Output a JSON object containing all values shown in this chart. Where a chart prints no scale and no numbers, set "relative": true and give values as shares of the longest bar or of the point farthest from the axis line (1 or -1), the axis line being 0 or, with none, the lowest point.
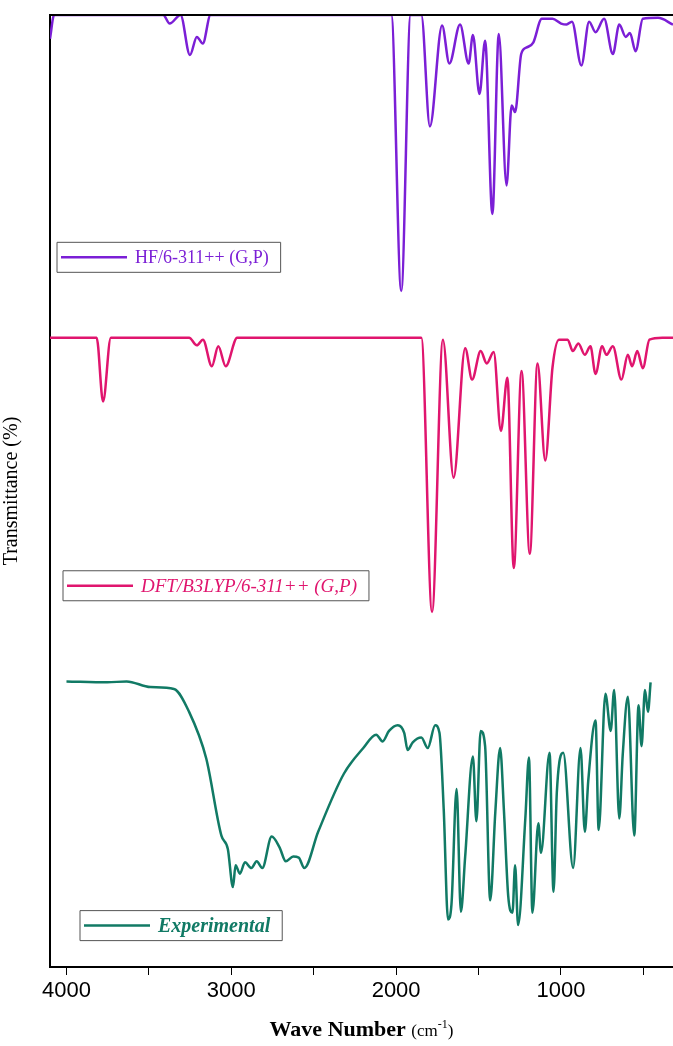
{
  "chart_data": {
    "type": "line",
    "xlabel": "Wave Number (cm$^{-1}$)",
    "ylabel": "Transmittance (%)",
    "relative": true,
    "xlim": [
      4100,
      320
    ],
    "xticks": [
      4000,
      {
        "value": 3500,
        "label": null
      },
      3000,
      {
        "value": 2500,
        "label": null
      },
      2000,
      {
        "value": 1500,
        "label": null
      },
      1000,
      {
        "value": 500,
        "label": null
      }
    ],
    "legend": "left",
    "grid": false,
    "marker": "none",
    "line_style": "solid",
    "series": [
      {
        "name": "HF/6-311++ (G,P)",
        "color": "#7b1fd6",
        "x": [
          4100,
          4075,
          3413,
          3374,
          3308,
          3251,
          3209,
          3173,
          3126,
          2029,
          1969,
          1912,
          1847,
          1795,
          1721,
          1677,
          1612,
          1560,
          1534,
          1494,
          1460,
          1416,
          1377,
          1330,
          1299,
          1278,
          1241,
          1207,
          1168,
          1116,
          1051,
          999,
          966,
          933,
          876,
          829,
          790,
          738,
          685,
          646,
          607,
          581,
          547,
          503,
          411,
          320
        ],
        "values": [
          0.975,
          1.0,
          1.0,
          0.991,
          1.0,
          0.958,
          0.977,
          0.97,
          1.0,
          1.0,
          0.71,
          1.0,
          1.0,
          0.883,
          0.989,
          0.949,
          0.99,
          0.949,
          0.979,
          0.917,
          0.973,
          0.791,
          0.98,
          0.821,
          0.905,
          0.898,
          0.959,
          0.966,
          0.971,
          0.996,
          0.996,
          0.991,
          0.99,
          0.993,
          0.947,
          0.993,
          0.982,
          0.996,
          0.959,
          0.99,
          0.977,
          0.981,
          0.962,
          0.996,
          0.997,
          0.99
        ]
      },
      {
        "name": "DFT/B3LYP/6-311++ (G,P)",
        "color": "#e0156e",
        "x": [
          4100,
          3817,
          3778,
          3731,
          3256,
          3209,
          3172,
          3118,
          3079,
          3034,
          2964,
          1847,
          1782,
          1716,
          1651,
          1581,
          1539,
          1487,
          1450,
          1408,
          1364,
          1325,
          1286,
          1239,
          1189,
          1142,
          1095,
          1051,
          1012,
          959,
          928,
          894,
          855,
          821,
          790,
          750,
          724,
          685,
          633,
          594,
          568,
          537,
          503,
          463,
          385,
          320
        ],
        "values": [
          0.661,
          0.661,
          0.594,
          0.661,
          0.661,
          0.653,
          0.659,
          0.631,
          0.652,
          0.631,
          0.661,
          0.661,
          0.373,
          0.659,
          0.514,
          0.65,
          0.617,
          0.647,
          0.634,
          0.646,
          0.563,
          0.619,
          0.419,
          0.626,
          0.434,
          0.634,
          0.532,
          0.63,
          0.659,
          0.659,
          0.647,
          0.655,
          0.643,
          0.652,
          0.623,
          0.652,
          0.643,
          0.652,
          0.617,
          0.643,
          0.631,
          0.647,
          0.629,
          0.659,
          0.661,
          0.661
        ]
      },
      {
        "name": "Experimental",
        "color": "#117a65",
        "x": [
          4000,
          3752,
          3635,
          3491,
          3348,
          3256,
          3152,
          3060,
          3021,
          2990,
          2974,
          2948,
          2917,
          2878,
          2846,
          2812,
          2755,
          2708,
          2669,
          2624,
          2591,
          2557,
          2473,
          2317,
          2199,
          2121,
          2082,
          2043,
          1990,
          1951,
          1930,
          1899,
          1847,
          1808,
          1763,
          1737,
          1711,
          1685,
          1664,
          1633,
          1607,
          1581,
          1534,
          1513,
          1487,
          1460,
          1429,
          1398,
          1369,
          1346,
          1320,
          1294,
          1278,
          1260,
          1216,
          1194,
          1173,
          1137,
          1121,
          1069,
          1045,
          1025,
          986,
          926,
          881,
          855,
          834,
          790,
          771,
          730,
          698,
          677,
          646,
          625,
          594,
          555,
          529,
          511,
          490,
          472,
          456
        ],
        "values": [
          0.3,
          0.299,
          0.3,
          0.294,
          0.292,
          0.268,
          0.219,
          0.138,
          0.124,
          0.084,
          0.107,
          0.098,
          0.11,
          0.104,
          0.111,
          0.104,
          0.137,
          0.126,
          0.111,
          0.116,
          0.115,
          0.104,
          0.142,
          0.203,
          0.23,
          0.244,
          0.237,
          0.248,
          0.254,
          0.246,
          0.228,
          0.236,
          0.241,
          0.23,
          0.254,
          0.246,
          0.165,
          0.05,
          0.066,
          0.187,
          0.058,
          0.116,
          0.221,
          0.153,
          0.248,
          0.232,
          0.07,
          0.163,
          0.23,
          0.165,
          0.075,
          0.057,
          0.107,
          0.044,
          0.156,
          0.22,
          0.057,
          0.151,
          0.12,
          0.225,
          0.079,
          0.183,
          0.225,
          0.104,
          0.23,
          0.142,
          0.196,
          0.259,
          0.144,
          0.287,
          0.248,
          0.291,
          0.156,
          0.223,
          0.284,
          0.138,
          0.275,
          0.232,
          0.291,
          0.268,
          0.299
        ]
      }
    ]
  }
}
